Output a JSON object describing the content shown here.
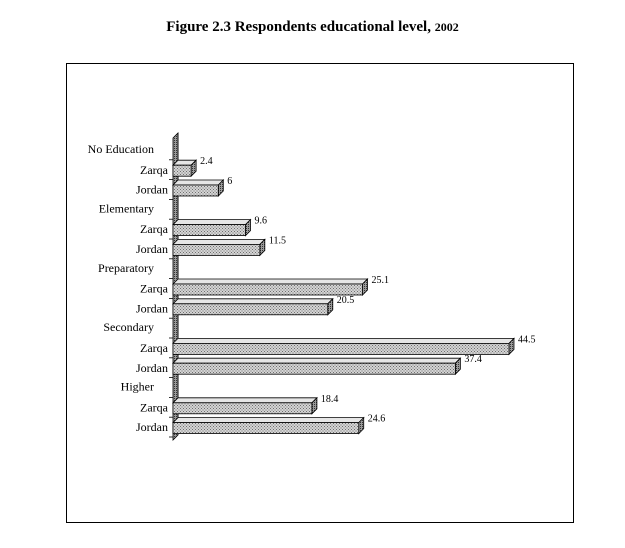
{
  "page": {
    "title_main": "Figure 2.3 Respondents educational level,",
    "title_year": "2002"
  },
  "chart_data": {
    "type": "bar",
    "orientation": "horizontal",
    "bar_style": "3d",
    "title": "Figure 2.3 Respondents educational level, 2002",
    "xlabel": "",
    "ylabel": "",
    "xlim": [
      0,
      50
    ],
    "grid": false,
    "legend": "none",
    "bar_color": "#b8b8b8",
    "groups": [
      {
        "label": "No Education",
        "bars": [
          {
            "label": "Zarqa",
            "value": 2.4,
            "value_text": "2.4"
          },
          {
            "label": "Jordan",
            "value": 6,
            "value_text": "6"
          }
        ]
      },
      {
        "label": "Elementary",
        "bars": [
          {
            "label": "Zarqa",
            "value": 9.6,
            "value_text": "9.6"
          },
          {
            "label": "Jordan",
            "value": 11.5,
            "value_text": "11.5"
          }
        ]
      },
      {
        "label": "Preparatory",
        "bars": [
          {
            "label": "Zarqa",
            "value": 25.1,
            "value_text": "25.1"
          },
          {
            "label": "Jordan",
            "value": 20.5,
            "value_text": "20.5"
          }
        ]
      },
      {
        "label": "Secondary",
        "bars": [
          {
            "label": "Zarqa",
            "value": 44.5,
            "value_text": "44.5"
          },
          {
            "label": "Jordan",
            "value": 37.4,
            "value_text": "37.4"
          }
        ]
      },
      {
        "label": "Higher",
        "bars": [
          {
            "label": "Zarqa",
            "value": 18.4,
            "value_text": "18.4"
          },
          {
            "label": "Jordan",
            "value": 24.6,
            "value_text": "24.6"
          }
        ]
      }
    ]
  }
}
